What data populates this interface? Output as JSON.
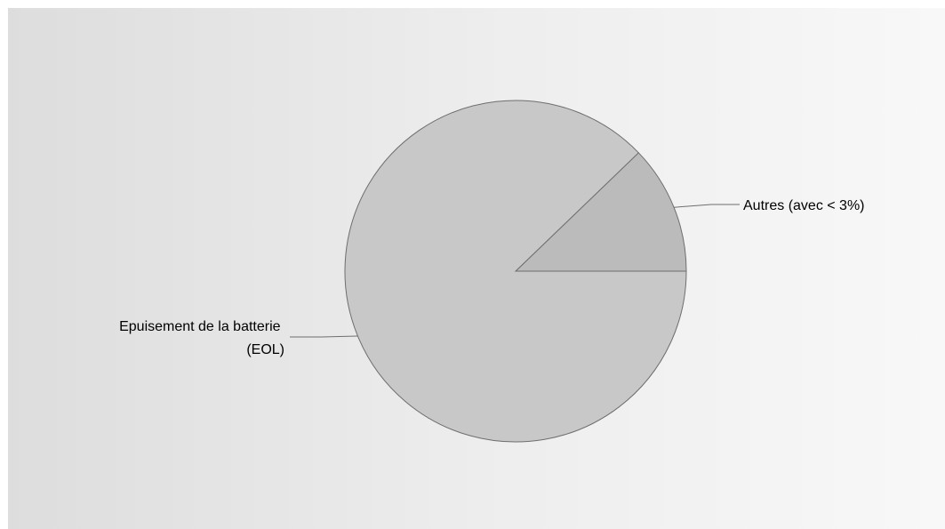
{
  "chart_data": {
    "type": "pie",
    "title": "",
    "slices": [
      {
        "label": "Autres (avec < 3%)",
        "value": 12.2,
        "color": "#bbbbbb"
      },
      {
        "label": "Epuisement de la batterie (EOL)",
        "value": 87.8,
        "color": "#c8c8c8"
      }
    ],
    "start_angle_deg": 0,
    "direction": "counterclockwise",
    "legend": "none",
    "labels": [
      {
        "lines": [
          "Autres (avec < 3%)"
        ]
      },
      {
        "lines": [
          "Epuisement de la batterie",
          "(EOL)"
        ]
      }
    ],
    "background": "#e6e6e6",
    "stroke_color": "#6e6e6e"
  }
}
